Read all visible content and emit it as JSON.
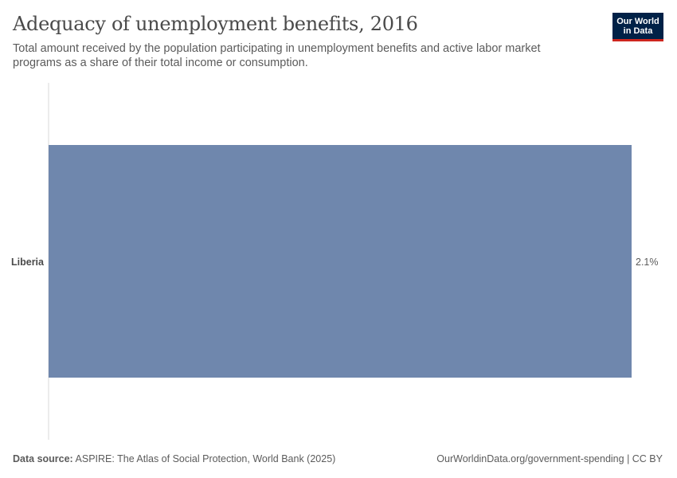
{
  "header": {
    "title": "Adequacy of unemployment benefits, 2016",
    "subtitle": "Total amount received by the population participating in unemployment benefits and active labor market programs as a share of their total income or consumption."
  },
  "logo": {
    "line1": "Our World",
    "line2": "in Data",
    "bg_color": "#002147",
    "accent_color": "#ce261e"
  },
  "footer": {
    "source_label": "Data source:",
    "source_text": "ASPIRE: The Atlas of Social Protection, World Bank (2025)",
    "url_text": "OurWorldinData.org/government-spending | CC BY"
  },
  "chart_data": {
    "type": "bar",
    "orientation": "horizontal",
    "categories": [
      "Liberia"
    ],
    "values": [
      2.1
    ],
    "value_labels": [
      "2.1%"
    ],
    "unit": "%",
    "xlim": [
      0,
      2.1
    ],
    "grid": false,
    "bar_color": "#6f87ad"
  }
}
